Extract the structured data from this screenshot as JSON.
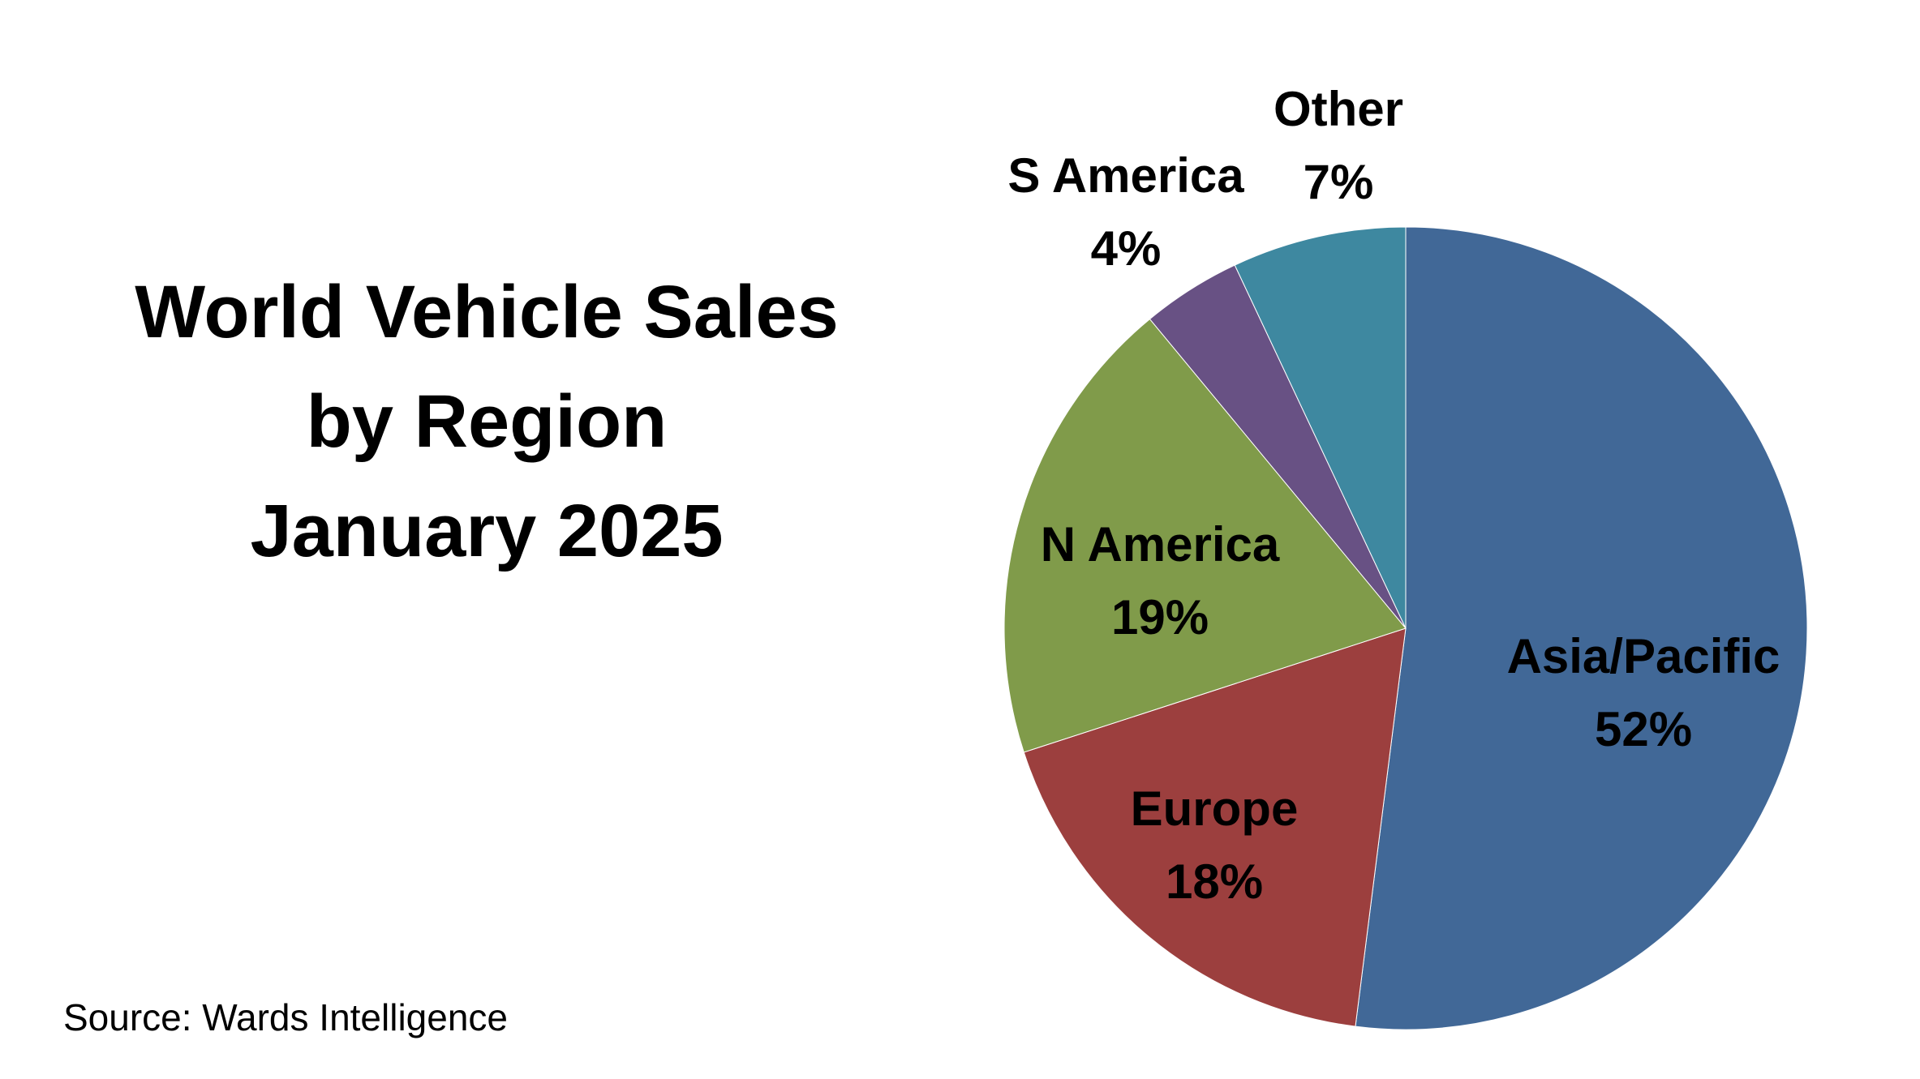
{
  "chart": {
    "title_lines": [
      "World Vehicle Sales",
      "by Region",
      "January 2025"
    ],
    "source": "Source: Wards Intelligence"
  },
  "chart_data": {
    "type": "pie",
    "title": "World Vehicle Sales by Region January 2025",
    "slices": [
      {
        "label": "Asia/Pacific",
        "value": 52,
        "value_label": "52%",
        "color": "#416897"
      },
      {
        "label": "Europe",
        "value": 18,
        "value_label": "18%",
        "color": "#9c3f3e"
      },
      {
        "label": "N America",
        "value": 19,
        "value_label": "19%",
        "color": "#809b4a"
      },
      {
        "label": "S America",
        "value": 4,
        "value_label": "4%",
        "color": "#685184"
      },
      {
        "label": "Other",
        "value": 7,
        "value_label": "7%",
        "color": "#3e88a0"
      }
    ],
    "start_angle": "12 o'clock",
    "direction": "clockwise",
    "annotations": "Source: Wards Intelligence"
  }
}
